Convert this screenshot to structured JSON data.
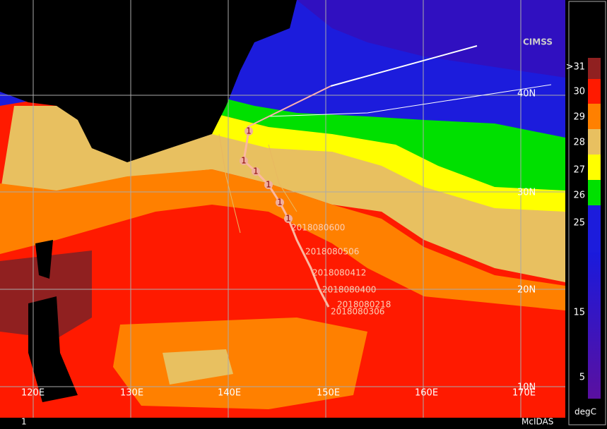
{
  "logo": "CIMSS",
  "footer": {
    "left": "1",
    "right": "McIDAS"
  },
  "longitude_labels": [
    "120E",
    "130E",
    "140E",
    "150E",
    "160E",
    "170E"
  ],
  "latitude_labels": [
    "40N",
    "30N",
    "20N",
    "10N"
  ],
  "track_labels": [
    "2018080600",
    "2018080506",
    "2018080412",
    "2018080400",
    "2018080218",
    "2018080306"
  ],
  "storm_markers": [
    "1",
    "1",
    "1",
    "1",
    "1",
    "1"
  ],
  "colorbar": {
    "labels": [
      ">31",
      "30",
      "29",
      "28",
      "27",
      "26",
      "25",
      "15",
      "5"
    ],
    "unit": "degC"
  }
}
